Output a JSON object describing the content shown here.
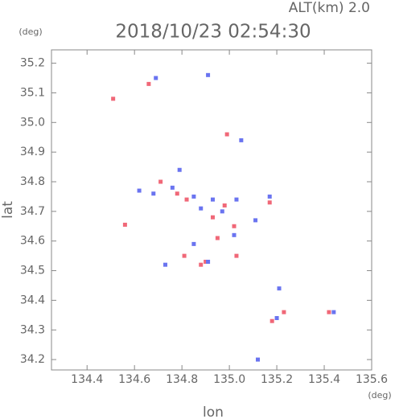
{
  "chart_data": {
    "type": "scatter",
    "title": "2018/10/23 02:54:30",
    "annotation": "ALT(km) 2.0",
    "x_label": "lon",
    "y_label": "lat",
    "x_unit": "(deg)",
    "y_unit": "(deg)",
    "xlim": [
      134.25,
      135.6
    ],
    "ylim": [
      34.165,
      35.245
    ],
    "xticks": [
      134.4,
      134.6,
      134.8,
      {
        "value": 135,
        "label": "135.0"
      },
      135.2,
      135.4,
      135.6
    ],
    "yticks": [
      34.2,
      34.3,
      34.4,
      34.5,
      34.6,
      34.7,
      34.8,
      34.9,
      {
        "value": 35,
        "label": "35.0"
      },
      35.1,
      35.2
    ],
    "series": [
      {
        "color": "#f06878",
        "x": [
          134.51,
          134.66,
          134.99,
          134.71,
          134.78,
          134.82,
          134.93,
          135.17,
          135.02,
          134.95,
          134.56,
          134.81,
          134.88,
          135.03,
          135.18,
          135.23,
          135.42,
          134.9,
          134.98
        ],
        "y": [
          35.08,
          35.13,
          34.96,
          34.8,
          34.76,
          34.74,
          34.68,
          34.73,
          34.65,
          34.61,
          34.655,
          34.55,
          34.52,
          34.55,
          34.33,
          34.36,
          34.36,
          34.53,
          34.72
        ]
      },
      {
        "color": "#6a74f0",
        "x": [
          134.69,
          134.91,
          135.05,
          134.79,
          134.62,
          134.68,
          134.85,
          134.93,
          135.03,
          135.17,
          135.11,
          135.02,
          134.85,
          134.91,
          134.73,
          135.21,
          135.2,
          135.44,
          135.12,
          134.76,
          134.97,
          134.88
        ],
        "y": [
          35.15,
          35.16,
          34.94,
          34.84,
          34.77,
          34.76,
          34.75,
          34.74,
          34.74,
          34.75,
          34.67,
          34.62,
          34.59,
          34.53,
          34.52,
          34.44,
          34.34,
          34.36,
          34.2,
          34.78,
          34.7,
          34.71
        ]
      }
    ]
  }
}
